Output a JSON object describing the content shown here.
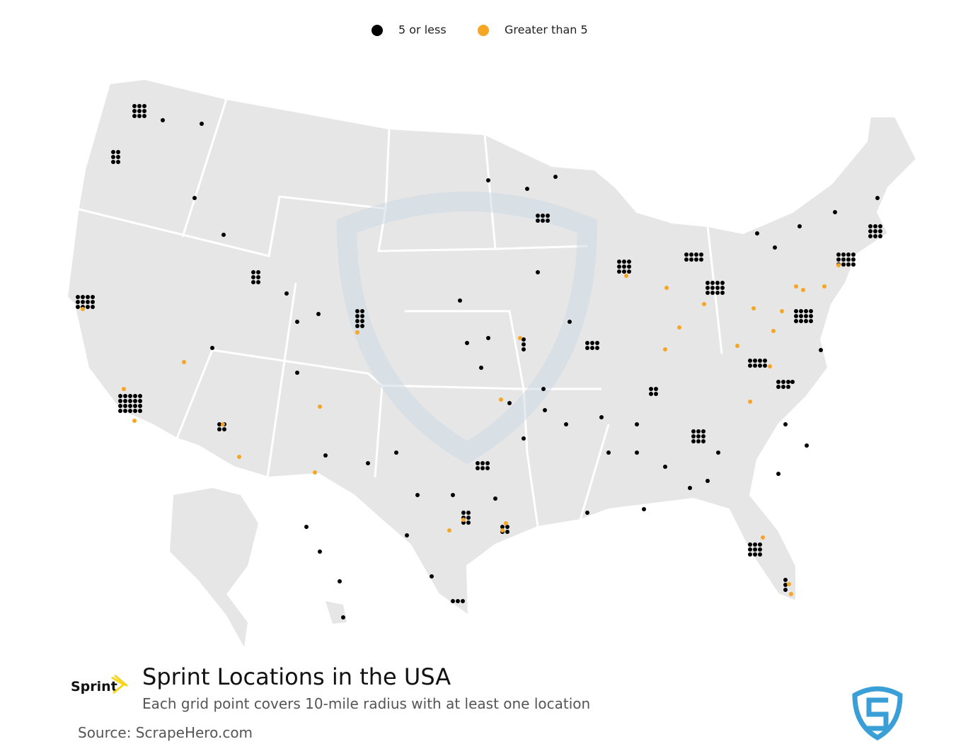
{
  "legend": {
    "items": [
      {
        "label": "5 or less",
        "color": "#000000"
      },
      {
        "label": "Greater than 5",
        "color": "#f5a623"
      }
    ]
  },
  "logo": {
    "text": "Sprint"
  },
  "header": {
    "title": "Sprint Locations in the USA",
    "subtitle": "Each grid point covers 10-mile radius with at least one location"
  },
  "footer": {
    "source": "Source: ScrapeHero.com"
  }
}
